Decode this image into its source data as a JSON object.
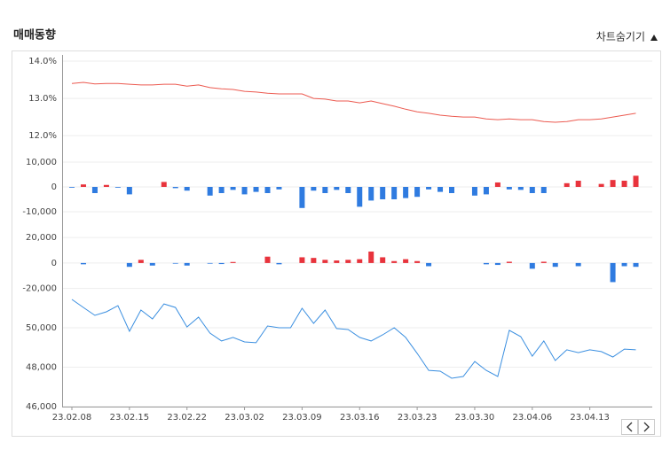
{
  "header": {
    "title": "매매동향",
    "toggle": "차트숨기기"
  },
  "chart_data": [
    {
      "type": "line",
      "color": "#ec5a50",
      "values": [
        13.4,
        13.43,
        13.39,
        13.4,
        13.4,
        13.38,
        13.36,
        13.36,
        13.38,
        13.38,
        13.33,
        13.36,
        13.29,
        13.26,
        13.24,
        13.19,
        13.17,
        13.14,
        13.12,
        13.12,
        13.12,
        13.0,
        12.98,
        12.93,
        12.93,
        12.88,
        12.93,
        12.86,
        12.79,
        12.71,
        12.64,
        12.6,
        12.55,
        12.52,
        12.5,
        12.5,
        12.45,
        12.43,
        12.45,
        12.43,
        12.43,
        12.38,
        12.36,
        12.38,
        12.43,
        12.43,
        12.45,
        12.5,
        12.55,
        12.6
      ],
      "ylim": [
        11.6,
        14.2
      ],
      "yticks": [
        {
          "value": 14,
          "label": "14.0%"
        },
        {
          "value": 13,
          "label": "13.0%"
        },
        {
          "value": 12,
          "label": "12.0%"
        }
      ],
      "grid": true
    },
    {
      "type": "bar",
      "positive_color": "#e8333c",
      "negative_color": "#2f7be0",
      "values": [
        -300,
        1000,
        -2500,
        800,
        -300,
        -3000,
        0,
        0,
        2000,
        -500,
        -1500,
        0,
        -3500,
        -2500,
        -1200,
        -3000,
        -2000,
        -2500,
        -1000,
        0,
        -8500,
        -1500,
        -2500,
        -1200,
        -2500,
        -8000,
        -5500,
        -5000,
        -5000,
        -4500,
        -4000,
        -1000,
        -2000,
        -2500,
        0,
        -3500,
        -3000,
        1800,
        -1000,
        -1200,
        -2500,
        -2500,
        0,
        1500,
        2500,
        0,
        1200,
        2800,
        2500,
        4500
      ],
      "ylim": [
        -15000,
        12500
      ],
      "yticks": [
        {
          "value": 10000,
          "label": "10,000"
        },
        0,
        {
          "value": -10000,
          "label": "-10,000"
        }
      ],
      "grid": true
    },
    {
      "type": "bar",
      "positive_color": "#e8333c",
      "negative_color": "#2f7be0",
      "values": [
        0,
        -1000,
        0,
        0,
        0,
        -3000,
        2500,
        -2000,
        0,
        -500,
        -2000,
        0,
        -500,
        -800,
        800,
        0,
        0,
        5000,
        -1000,
        0,
        4500,
        4000,
        2500,
        2000,
        2500,
        3000,
        9000,
        4500,
        1500,
        3000,
        1500,
        -2500,
        0,
        0,
        0,
        0,
        -1000,
        -1500,
        1000,
        0,
        -4500,
        1000,
        -3000,
        0,
        -2500,
        0,
        0,
        -15000,
        -2500,
        -3000
      ],
      "ylim": [
        -30000,
        25000
      ],
      "yticks": [
        {
          "value": 20000,
          "label": "20,000"
        },
        0,
        {
          "value": -20000,
          "label": "-20,000"
        }
      ],
      "grid": true
    },
    {
      "type": "line",
      "color": "#3b8fe0",
      "categories": [
        "23.02.08",
        null,
        null,
        null,
        null,
        "23.02.15",
        null,
        null,
        null,
        null,
        "23.02.22",
        null,
        null,
        null,
        null,
        "23.03.02",
        null,
        null,
        null,
        null,
        "23.03.09",
        null,
        null,
        null,
        null,
        "23.03.16",
        null,
        null,
        null,
        null,
        "23.03.23",
        null,
        null,
        null,
        null,
        "23.03.30",
        null,
        null,
        null,
        null,
        "23.04.06",
        null,
        null,
        null,
        null,
        "23.04.13",
        null,
        null,
        null,
        null
      ],
      "values": [
        51440,
        51030,
        50630,
        50810,
        51120,
        49820,
        50900,
        50450,
        51210,
        51030,
        50040,
        50540,
        49730,
        49330,
        49510,
        49280,
        49240,
        50090,
        50000,
        50000,
        50990,
        50220,
        50900,
        49960,
        49910,
        49510,
        49330,
        49640,
        50000,
        49510,
        48700,
        47840,
        47800,
        47440,
        47530,
        48290,
        47840,
        47530,
        49870,
        49550,
        48560,
        49330,
        48340,
        48880,
        48740,
        48880,
        48790,
        48520,
        48920,
        48880
      ],
      "ylim": [
        46000,
        51800
      ],
      "yticks": [
        {
          "value": 50000,
          "label": "50,000"
        },
        {
          "value": 48000,
          "label": "48,000"
        },
        {
          "value": 46000,
          "label": "46,000"
        }
      ],
      "grid": true
    }
  ]
}
